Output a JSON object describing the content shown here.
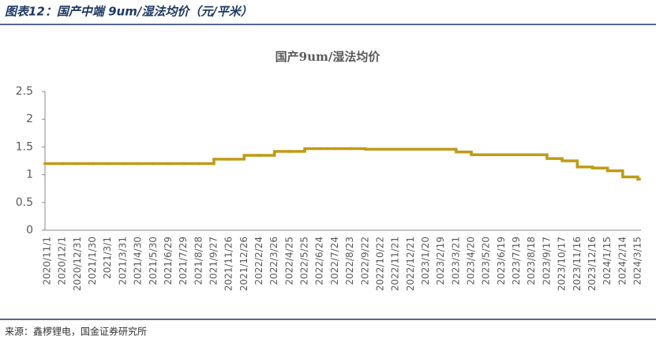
{
  "header": {
    "title": "图表12：国产中端 9um/湿法均价（元/平米）"
  },
  "chart_data": {
    "type": "step",
    "title": "国产9um/湿法均价",
    "categories": [
      "2020/11/1",
      "2020/12/1",
      "2020/12/31",
      "2021/1/30",
      "2021/3/1",
      "2021/3/31",
      "2021/4/30",
      "2021/5/30",
      "2021/6/29",
      "2021/7/29",
      "2021/8/28",
      "2021/9/27",
      "2021/11/26",
      "2021/12/26",
      "2022/2/24",
      "2022/3/26",
      "2022/4/25",
      "2022/5/25",
      "2022/6/24",
      "2022/7/24",
      "2022/8/23",
      "2022/9/22",
      "2022/10/22",
      "2022/11/21",
      "2022/12/21",
      "2023/1/20",
      "2023/2/19",
      "2023/3/21",
      "2023/4/20",
      "2023/5/20",
      "2023/6/19",
      "2023/7/19",
      "2023/8/18",
      "2023/9/17",
      "2023/10/17",
      "2023/11/16",
      "2023/12/16",
      "2024/1/15",
      "2024/2/14",
      "2024/3/15"
    ],
    "values": [
      1.2,
      1.2,
      1.2,
      1.2,
      1.2,
      1.2,
      1.2,
      1.2,
      1.2,
      1.2,
      1.2,
      1.28,
      1.28,
      1.35,
      1.35,
      1.42,
      1.42,
      1.47,
      1.47,
      1.47,
      1.47,
      1.46,
      1.46,
      1.46,
      1.46,
      1.46,
      1.46,
      1.41,
      1.36,
      1.36,
      1.36,
      1.36,
      1.36,
      1.29,
      1.25,
      1.14,
      1.12,
      1.07,
      0.96,
      0.92
    ],
    "color": "#bf9b16",
    "ylim": [
      0,
      2.5
    ],
    "yticks": [
      0,
      0.5,
      1,
      1.5,
      2,
      2.5
    ]
  },
  "footer": {
    "source": "来源：鑫椤锂电，国金证券研究所"
  }
}
